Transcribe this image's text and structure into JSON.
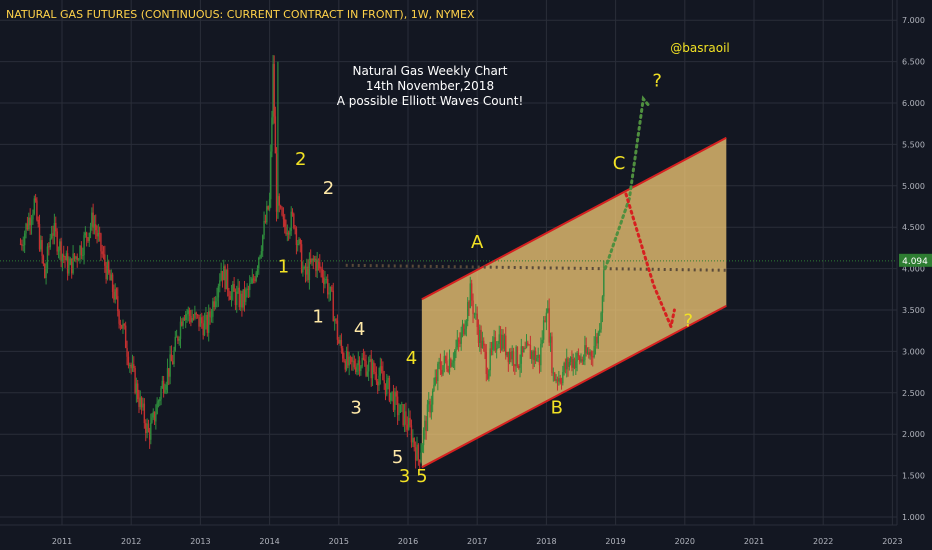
{
  "header": {
    "symbol_title": "NATURAL GAS FUTURES (CONTINUOUS: CURRENT CONTRACT IN FRONT), 1W, NYMEX"
  },
  "chart_data": {
    "type": "candlestick",
    "title_lines": [
      "Natural Gas Weekly Chart",
      "14th November,2018",
      "A possible Elliott Waves Count!"
    ],
    "handle": "@basraoil",
    "last_price": "4.094",
    "x_tick_labels": [
      "2011",
      "2012",
      "2013",
      "2014",
      "2015",
      "2016",
      "2017",
      "2018",
      "2019",
      "2020",
      "2021",
      "2022",
      "2023"
    ],
    "y_tick_labels": [
      "7.000",
      "6.500",
      "6.000",
      "5.500",
      "5.000",
      "4.500",
      "4.000",
      "3.500",
      "3.000",
      "2.500",
      "2.000",
      "1.500",
      "1.000"
    ],
    "ylim": [
      0.9,
      7.1
    ],
    "grid": true,
    "price_series": {
      "name": "Natural Gas Futures weekly close (approx.)",
      "x": [
        2010.4,
        2010.6,
        2010.75,
        2010.85,
        2010.95,
        2011.1,
        2011.3,
        2011.45,
        2011.6,
        2011.75,
        2011.9,
        2012.0,
        2012.15,
        2012.25,
        2012.3,
        2012.45,
        2012.6,
        2012.75,
        2012.9,
        2013.1,
        2013.3,
        2013.45,
        2013.6,
        2013.75,
        2013.9,
        2014.0,
        2014.05,
        2014.1,
        2014.2,
        2014.35,
        2014.5,
        2014.65,
        2014.8,
        2014.9,
        2015.0,
        2015.15,
        2015.3,
        2015.45,
        2015.6,
        2015.75,
        2015.85,
        2015.95,
        2016.05,
        2016.15,
        2016.3,
        2016.45,
        2016.6,
        2016.75,
        2016.9,
        2017.0,
        2017.15,
        2017.3,
        2017.45,
        2017.6,
        2017.75,
        2017.9,
        2018.0,
        2018.1,
        2018.2,
        2018.35,
        2018.5,
        2018.65,
        2018.75,
        2018.85
      ],
      "y": [
        4.3,
        4.8,
        3.9,
        4.5,
        4.3,
        4.0,
        4.3,
        4.6,
        4.1,
        3.7,
        3.2,
        2.8,
        2.3,
        2.0,
        2.1,
        2.6,
        2.9,
        3.5,
        3.4,
        3.3,
        4.0,
        3.7,
        3.6,
        3.8,
        4.4,
        4.8,
        6.4,
        4.8,
        4.5,
        4.6,
        3.9,
        4.1,
        3.9,
        3.6,
        3.1,
        2.8,
        2.9,
        2.8,
        2.7,
        2.5,
        2.3,
        2.2,
        2.0,
        1.7,
        2.3,
        2.8,
        2.9,
        3.1,
        3.7,
        3.3,
        2.8,
        3.2,
        3.0,
        2.9,
        3.0,
        2.9,
        3.6,
        2.7,
        2.7,
        2.9,
        2.9,
        3.0,
        3.2,
        4.1
      ]
    },
    "channel": {
      "upper": [
        {
          "x": 2016.2,
          "y": 3.63
        },
        {
          "x": 2020.6,
          "y": 5.58
        }
      ],
      "lower": [
        {
          "x": 2016.2,
          "y": 1.6
        },
        {
          "x": 2020.6,
          "y": 3.55
        }
      ]
    },
    "horizontal_dotted_line": [
      {
        "x": 2015.1,
        "y": 4.04
      },
      {
        "x": 2020.6,
        "y": 3.98
      }
    ],
    "projections": [
      {
        "color": "#4f8f3f",
        "points": [
          {
            "x": 2018.85,
            "y": 4.0
          },
          {
            "x": 2019.2,
            "y": 4.85
          },
          {
            "x": 2019.4,
            "y": 6.05
          },
          {
            "x": 2019.5,
            "y": 5.95
          }
        ]
      },
      {
        "color": "#d62020",
        "points": [
          {
            "x": 2019.15,
            "y": 4.9
          },
          {
            "x": 2019.55,
            "y": 3.8
          },
          {
            "x": 2019.8,
            "y": 3.3
          },
          {
            "x": 2019.85,
            "y": 3.5
          }
        ]
      }
    ],
    "wave_labels": [
      {
        "text": "2",
        "x": 2014.45,
        "y": 5.25,
        "color": "#f2e224"
      },
      {
        "text": "2",
        "x": 2014.85,
        "y": 4.9,
        "color": "#ffe9a8"
      },
      {
        "text": "1",
        "x": 2014.2,
        "y": 3.95,
        "color": "#f2e224"
      },
      {
        "text": "1",
        "x": 2014.7,
        "y": 3.35,
        "color": "#ffe9a8"
      },
      {
        "text": "4",
        "x": 2015.3,
        "y": 3.2,
        "color": "#ffe9a8"
      },
      {
        "text": "3",
        "x": 2015.25,
        "y": 2.25,
        "color": "#ffe9a8"
      },
      {
        "text": "4",
        "x": 2016.05,
        "y": 2.85,
        "color": "#f2e224"
      },
      {
        "text": "5",
        "x": 2015.85,
        "y": 1.65,
        "color": "#ffe9a8"
      },
      {
        "text": "3",
        "x": 2015.95,
        "y": 1.42,
        "color": "#f2e224"
      },
      {
        "text": "5",
        "x": 2016.2,
        "y": 1.42,
        "color": "#f2e224"
      },
      {
        "text": "A",
        "x": 2017.0,
        "y": 4.25,
        "color": "#f2e224"
      },
      {
        "text": "B",
        "x": 2018.15,
        "y": 2.25,
        "color": "#f2e224"
      },
      {
        "text": "C",
        "x": 2019.05,
        "y": 5.2,
        "color": "#f2e224"
      },
      {
        "text": "?",
        "x": 2019.6,
        "y": 6.2,
        "color": "#f2e224"
      },
      {
        "text": "?",
        "x": 2020.05,
        "y": 3.3,
        "color": "#f2e224"
      }
    ]
  },
  "colors": {
    "background": "#131722",
    "grid": "#2a2e39",
    "axis_text": "#b2b5be",
    "up": "#2e8b3d",
    "down": "#c43030",
    "channel_fill": "#ffd27a",
    "channel_line": "#d62020",
    "last_price_bg": "#2e7d32",
    "last_price_line": "#2e7d32"
  }
}
